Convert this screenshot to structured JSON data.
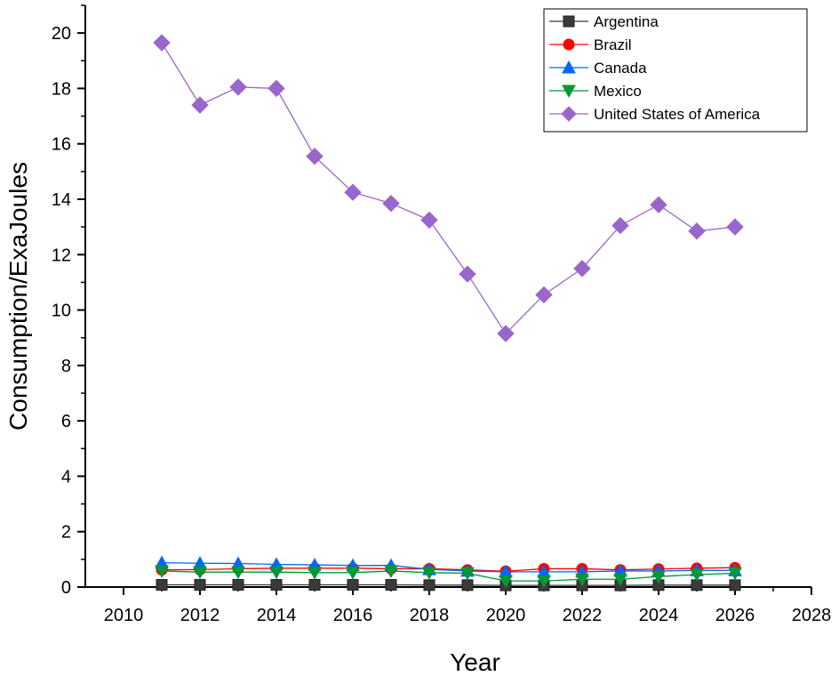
{
  "chart_data": {
    "type": "line",
    "title": "",
    "xlabel": "Year",
    "ylabel": "Consumption/ExaJoules",
    "xlim": [
      2009,
      2028
    ],
    "ylim": [
      0,
      21
    ],
    "xticks": [
      2010,
      2012,
      2014,
      2016,
      2018,
      2020,
      2022,
      2024,
      2026,
      2028
    ],
    "yticks": [
      0,
      2,
      4,
      6,
      8,
      10,
      12,
      14,
      16,
      18,
      20
    ],
    "legend_position": "top-right",
    "x": [
      2011,
      2012,
      2013,
      2014,
      2015,
      2016,
      2017,
      2018,
      2019,
      2020,
      2021,
      2022,
      2023,
      2024,
      2025,
      2026
    ],
    "series": [
      {
        "name": "Argentina",
        "marker": "square",
        "color": "#3a3a3a",
        "values": [
          0.08,
          0.08,
          0.08,
          0.08,
          0.08,
          0.08,
          0.08,
          0.07,
          0.07,
          0.06,
          0.06,
          0.06,
          0.06,
          0.07,
          0.07,
          0.07
        ]
      },
      {
        "name": "Brazil",
        "marker": "circle",
        "color": "#ff0000",
        "values": [
          0.62,
          0.63,
          0.66,
          0.68,
          0.68,
          0.68,
          0.66,
          0.66,
          0.62,
          0.57,
          0.66,
          0.66,
          0.62,
          0.65,
          0.68,
          0.7
        ]
      },
      {
        "name": "Canada",
        "marker": "triangle-up",
        "color": "#0066ff",
        "values": [
          0.88,
          0.86,
          0.85,
          0.82,
          0.8,
          0.78,
          0.78,
          0.64,
          0.58,
          0.55,
          0.55,
          0.55,
          0.58,
          0.58,
          0.6,
          0.6
        ]
      },
      {
        "name": "Mexico",
        "marker": "triangle-down",
        "color": "#009933",
        "values": [
          0.58,
          0.54,
          0.54,
          0.54,
          0.52,
          0.52,
          0.58,
          0.52,
          0.5,
          0.22,
          0.22,
          0.28,
          0.28,
          0.38,
          0.45,
          0.5
        ]
      },
      {
        "name": "United States of America",
        "marker": "diamond",
        "color": "#9966cc",
        "values": [
          19.65,
          17.4,
          18.05,
          18.0,
          15.55,
          14.25,
          13.85,
          13.25,
          11.3,
          9.15,
          10.55,
          11.5,
          13.05,
          13.8,
          12.85,
          13.0
        ]
      }
    ]
  }
}
